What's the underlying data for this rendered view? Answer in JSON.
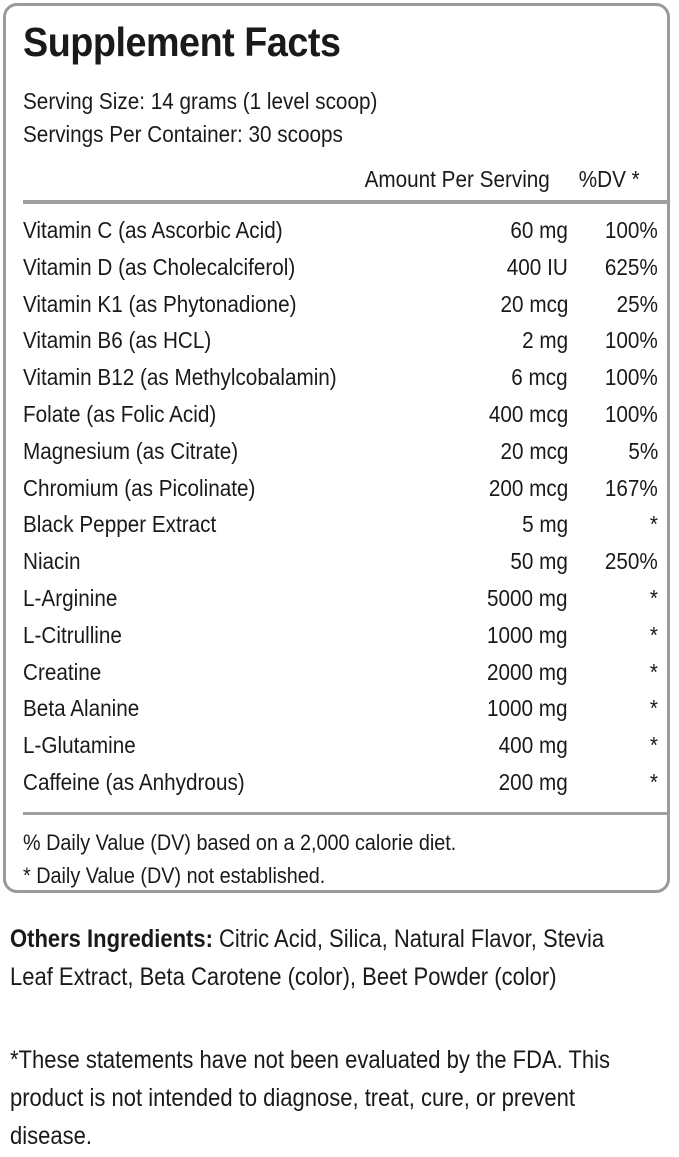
{
  "facts": {
    "title": "Supplement Facts",
    "serving_size": "Serving Size: 14 grams (1 level scoop)",
    "servings_per_container": "Servings Per Container: 30 scoops",
    "header_amount": "Amount Per Serving",
    "header_dv": "%DV *",
    "rows": [
      {
        "name": "Vitamin C (as Ascorbic Acid)",
        "amount": "60 mg",
        "dv": "100%"
      },
      {
        "name": "Vitamin D (as Cholecalciferol)",
        "amount": "400 IU",
        "dv": "625%"
      },
      {
        "name": "Vitamin K1 (as Phytonadione)",
        "amount": "20 mcg",
        "dv": "25%"
      },
      {
        "name": "Vitamin B6 (as HCL)",
        "amount": "2 mg",
        "dv": "100%"
      },
      {
        "name": "Vitamin B12 (as Methylcobalamin)",
        "amount": "6 mcg",
        "dv": "100%"
      },
      {
        "name": "Folate (as Folic Acid)",
        "amount": "400 mcg",
        "dv": "100%"
      },
      {
        "name": "Magnesium (as Citrate)",
        "amount": "20 mcg",
        "dv": "5%"
      },
      {
        "name": "Chromium (as Picolinate)",
        "amount": "200 mcg",
        "dv": "167%"
      },
      {
        "name": "Black Pepper Extract",
        "amount": "5 mg",
        "dv": "*"
      },
      {
        "name": "Niacin",
        "amount": "50 mg",
        "dv": "250%"
      },
      {
        "name": "L-Arginine",
        "amount": "5000 mg",
        "dv": "*"
      },
      {
        "name": "L-Citrulline",
        "amount": "1000 mg",
        "dv": "*"
      },
      {
        "name": "Creatine",
        "amount": "2000 mg",
        "dv": "*"
      },
      {
        "name": "Beta Alanine",
        "amount": "1000 mg",
        "dv": "*"
      },
      {
        "name": "L-Glutamine",
        "amount": "400 mg",
        "dv": "*"
      },
      {
        "name": "Caffeine (as Anhydrous)",
        "amount": "200 mg",
        "dv": "*"
      }
    ],
    "footnote_1": "% Daily Value (DV) based on a 2,000 calorie diet.",
    "footnote_2": "* Daily Value (DV) not established."
  },
  "other_ingredients": {
    "label": "Others Ingredients:",
    "text": " Citric Acid, Silica, Natural Flavor, Stevia Leaf Extract, Beta Carotene (color), Beet Powder (color)"
  },
  "disclaimer": "*These statements have not been evaluated by the FDA. This product is not intended to diagnose, treat, cure, or prevent disease."
}
